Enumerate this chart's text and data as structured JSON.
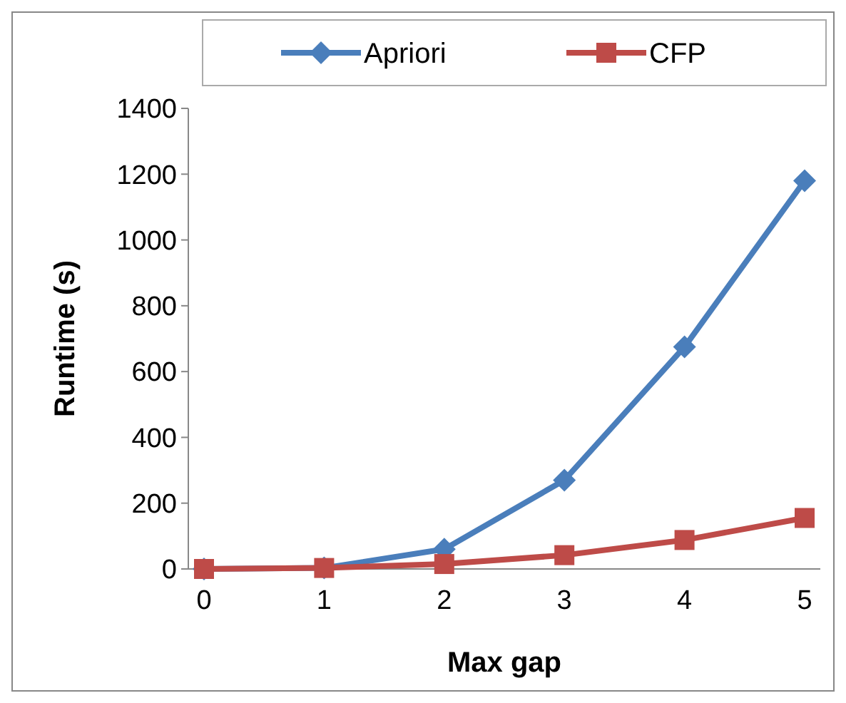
{
  "chart_data": {
    "type": "line",
    "xlabel": "Max gap",
    "ylabel": "Runtime (s)",
    "categories": [
      "0",
      "1",
      "2",
      "3",
      "4",
      "5"
    ],
    "series": [
      {
        "name": "Apriori",
        "color": "#4a7ebb",
        "marker": "diamond",
        "values": [
          0,
          3,
          60,
          270,
          675,
          1180
        ]
      },
      {
        "name": "CFP",
        "color": "#be4b48",
        "marker": "square",
        "values": [
          0,
          3,
          15,
          42,
          88,
          155
        ]
      }
    ],
    "ylim": [
      0,
      1400
    ],
    "yticks": [
      0,
      200,
      400,
      600,
      800,
      1000,
      1200,
      1400
    ],
    "grid": false,
    "legend": "top",
    "line_style": "solid"
  }
}
